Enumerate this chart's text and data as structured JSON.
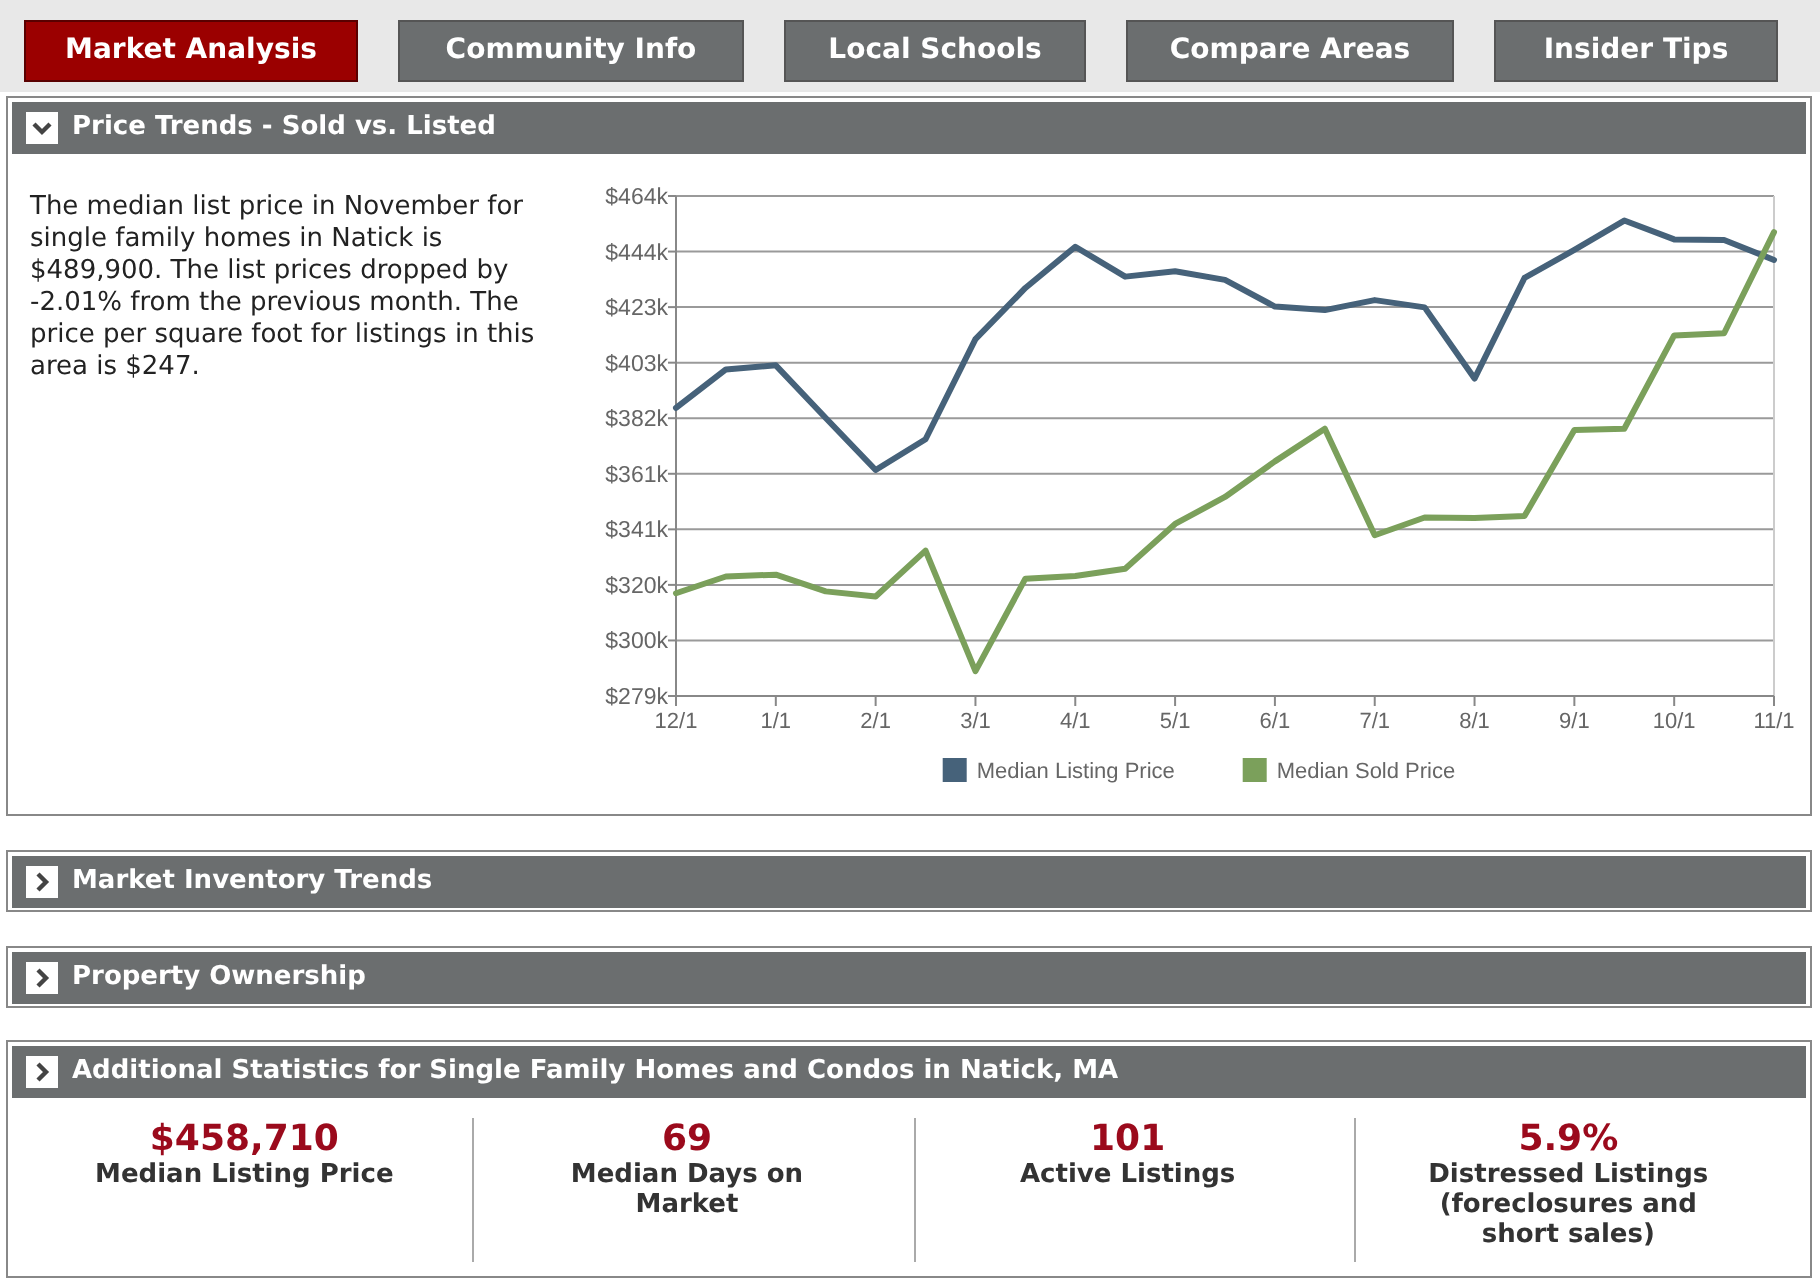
{
  "chart_data": [
    {
      "type": "other",
      "annotations": [
        "Market Analysis",
        "Community Info",
        "Local Schools",
        "Compare Areas",
        "Insider Tips"
      ]
    },
    {
      "type": "line",
      "title": "Price Trends - Sold vs. Listed",
      "annotations": [
        "The median list price in November for single family homes in Natick is $489,900. The list prices dropped by -2.01% from the previous month. The price per square foot for listings in this area is $247."
      ],
      "categories": [
        "12/1",
        null,
        "1/1",
        null,
        "2/1",
        null,
        "3/1",
        null,
        "4/1",
        null,
        "5/1",
        null,
        "6/1",
        null,
        "7/1",
        null,
        "8/1",
        null,
        "9/1",
        null,
        "10/1",
        null,
        "11/1"
      ],
      "series": [
        {
          "name": "Median Listing Price",
          "color": "#46627a",
          "values": [
            385.8,
            400.1,
            401.6,
            382.1,
            362.8,
            374.2,
            411.3,
            430.3,
            445.6,
            434.5,
            436.5,
            433.3,
            423.4,
            422.1,
            425.8,
            423.1,
            396.7,
            434.0,
            444.4,
            455.3,
            448.3,
            448.1,
            440.7
          ]
        },
        {
          "name": "Median Sold Price",
          "color": "#7ba05b",
          "values": [
            317.1,
            323.3,
            324.0,
            317.8,
            315.9,
            332.9,
            288.2,
            322.5,
            323.5,
            326.2,
            342.8,
            352.8,
            366.0,
            378.1,
            338.6,
            345.2,
            345.0,
            345.7,
            377.6,
            378.1,
            412.7,
            413.5,
            451.0
          ]
        }
      ],
      "ylim": [
        279,
        464.4
      ],
      "yticks": [
        {
          "value": 279,
          "label": "$279k"
        },
        {
          "value": 299.6,
          "label": "$300k"
        },
        {
          "value": 320.2,
          "label": "$320k"
        },
        {
          "value": 340.8,
          "label": "$341k"
        },
        {
          "value": 361.4,
          "label": "$361k"
        },
        {
          "value": 382,
          "label": "$382k"
        },
        {
          "value": 402.6,
          "label": "$403k"
        },
        {
          "value": 423.2,
          "label": "$423k"
        },
        {
          "value": 443.8,
          "label": "$444k"
        },
        {
          "value": 464.4,
          "label": "$464k"
        }
      ],
      "grid": "y",
      "legend": "bottom",
      "marker": "none",
      "line_style": "solid"
    },
    {
      "type": "other",
      "title": "Market Inventory Trends"
    },
    {
      "type": "other",
      "title": "Property Ownership"
    },
    {
      "type": "other",
      "title": "Additional Statistics for Single Family Homes and Condos in Natick, MA",
      "annotations": [
        "$458,710",
        "Median Listing Price",
        "69",
        "Median Days on Market",
        "101",
        "Active Listings",
        "5.9%",
        "Distressed Listings (foreclosures and short sales)"
      ]
    }
  ]
}
